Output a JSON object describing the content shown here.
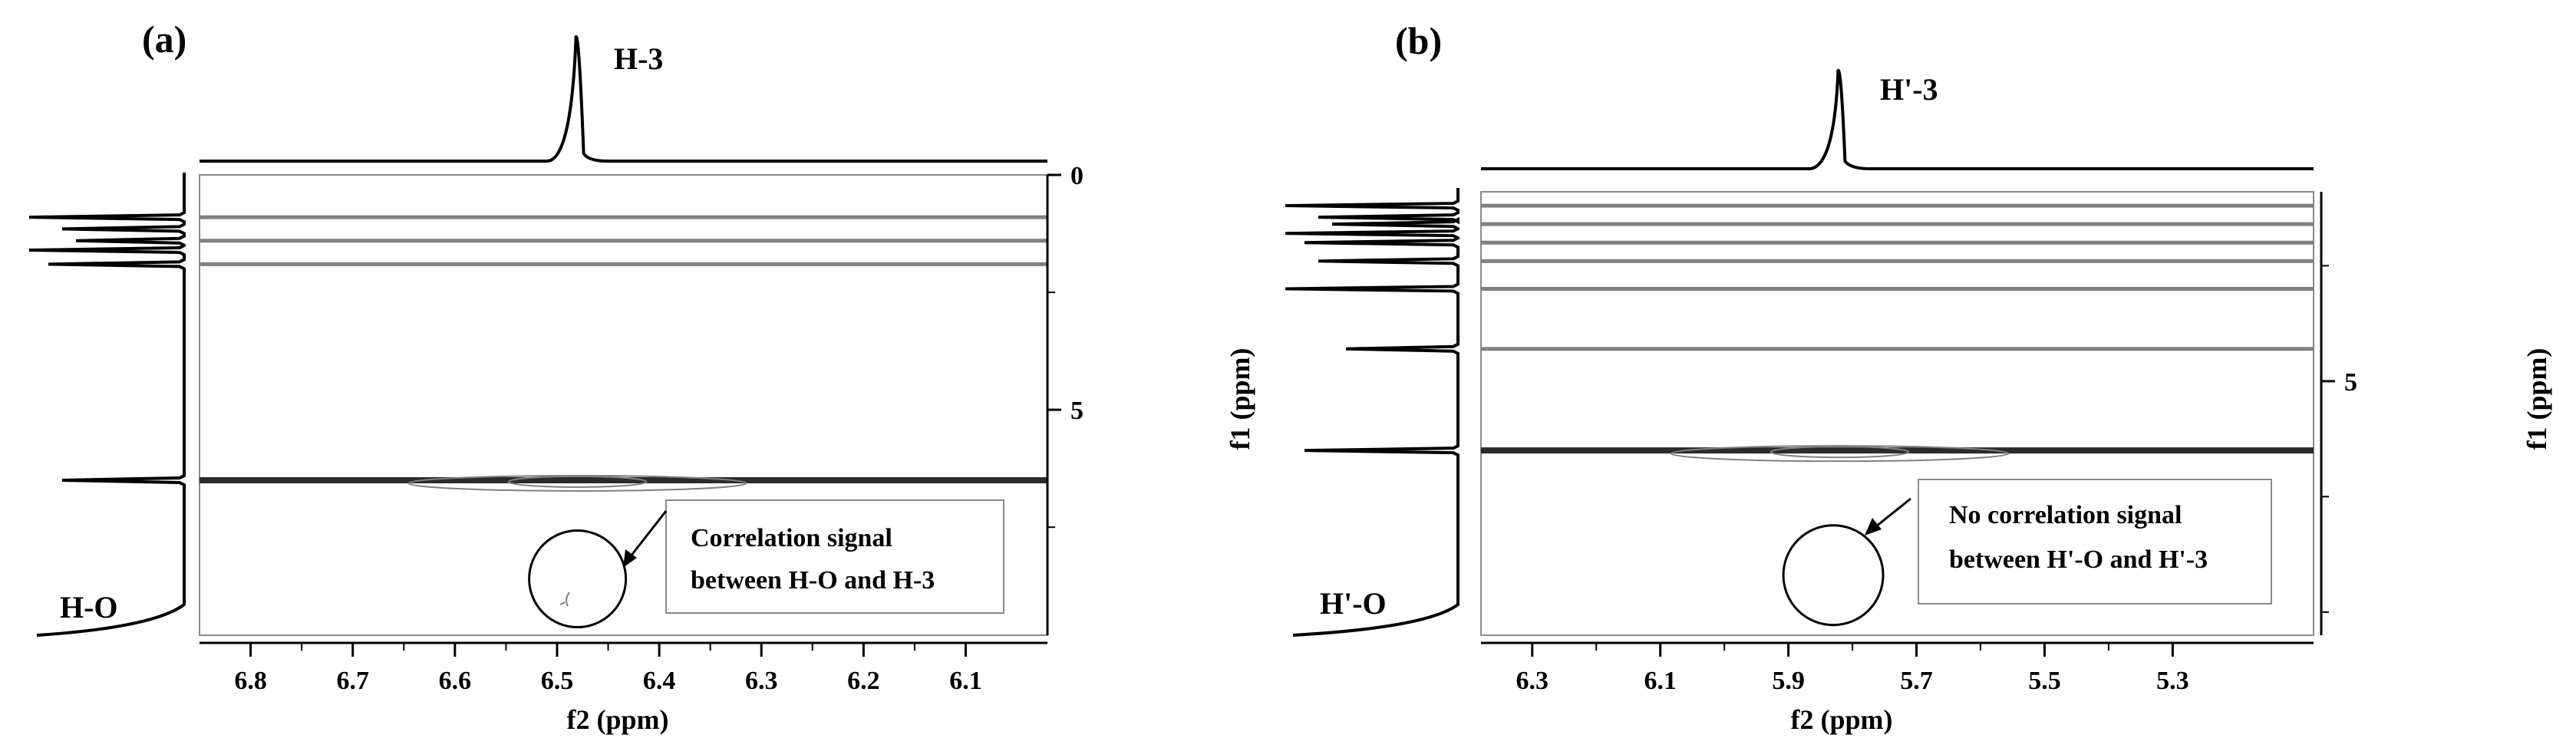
{
  "chart_data": [
    {
      "type": "2D NMR contour plot",
      "panel_label": "(a)",
      "top_trace_label": "H-3",
      "side_trace_label": "H-O",
      "xlabel": "f2 (ppm)",
      "ylabel": "",
      "x_ticks": [
        6.8,
        6.7,
        6.6,
        6.5,
        6.4,
        6.3,
        6.2,
        6.1
      ],
      "xlim": [
        6.85,
        6.02
      ],
      "y_ticks": [
        0,
        5
      ],
      "ylim": [
        0,
        9.8
      ],
      "top_peak_x": 6.48,
      "annotation": [
        "Correlation signal",
        "between H-O and H-3"
      ],
      "circle_center": {
        "x": 6.48,
        "y": 8.6
      },
      "contour_bands_f1": [
        0.9,
        1.4,
        1.9,
        6.5
      ],
      "colors": {
        "contour": "#808080",
        "strong": "#2b2b2b"
      }
    },
    {
      "type": "2D NMR contour plot",
      "panel_label": "(b)",
      "top_trace_label": "H'-3",
      "side_trace_label": "H'-O",
      "xlabel": "f2 (ppm)",
      "ylabel": "f1 (ppm)",
      "x_ticks": [
        6.3,
        6.1,
        5.9,
        5.7,
        5.5,
        5.3
      ],
      "xlim": [
        6.38,
        5.08
      ],
      "y_ticks": [
        5
      ],
      "ylim": [
        0.9,
        10.5
      ],
      "top_peak_x": 5.82,
      "annotation": [
        "No correlation",
        "signal",
        "between H'-O and H'-3"
      ],
      "circle_center": {
        "x": 5.83,
        "y": 9.2
      },
      "contour_bands_f1": [
        1.2,
        1.6,
        2.0,
        2.4,
        3.0,
        4.3,
        6.5
      ],
      "colors": {
        "contour": "#808080",
        "strong": "#2b2b2b"
      }
    }
  ],
  "extra_axis_label": "f1 (ppm)"
}
